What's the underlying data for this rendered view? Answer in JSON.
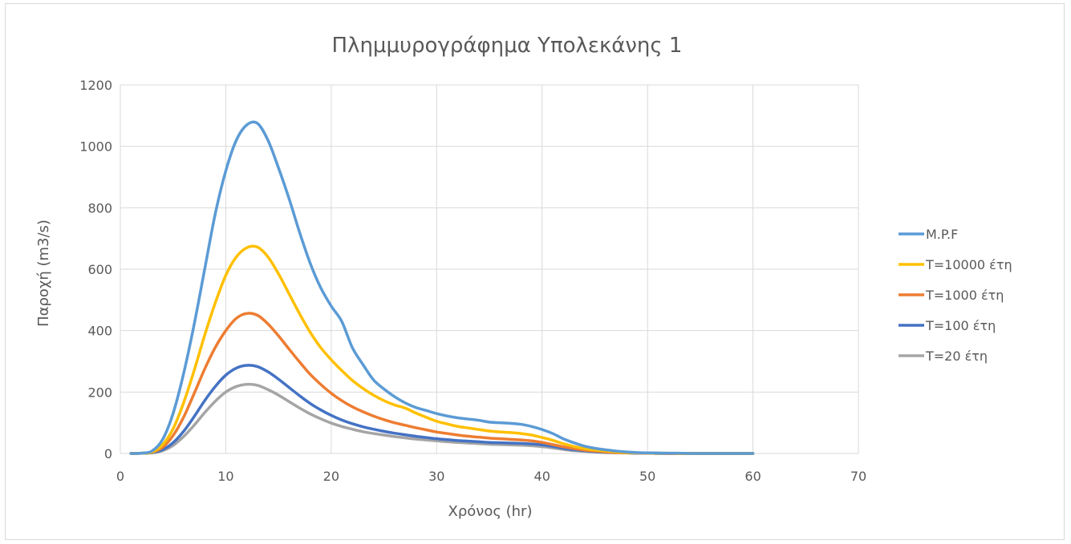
{
  "chart_data": {
    "type": "line",
    "title": "Πλημμυρογράφημα Υπολεκάνης 1",
    "xlabel": "Χρόνος (hr)",
    "ylabel": "Παροχή (m3/s)",
    "xlim": [
      0,
      70
    ],
    "ylim": [
      0,
      1200
    ],
    "xticks": [
      0,
      10,
      20,
      30,
      40,
      50,
      60,
      70
    ],
    "yticks": [
      0,
      200,
      400,
      600,
      800,
      1000,
      1200
    ],
    "grid": true,
    "legend_position": "right",
    "series": [
      {
        "name": "M.P.F",
        "color": "#5b9bd5",
        "x": [
          1,
          2,
          3,
          4,
          5,
          6,
          7,
          8,
          9,
          10,
          11,
          12,
          13,
          14,
          15,
          16,
          17,
          18,
          19,
          20,
          21,
          22,
          23,
          24,
          25,
          26,
          27,
          28,
          29,
          30,
          31,
          32,
          33,
          34,
          35,
          36,
          37,
          38,
          39,
          40,
          41,
          42,
          43,
          44,
          45,
          46,
          47,
          48,
          49,
          50,
          51,
          52,
          53,
          54,
          55,
          56,
          57,
          58,
          59,
          60
        ],
        "y": [
          0,
          1,
          8,
          45,
          130,
          260,
          420,
          600,
          780,
          920,
          1020,
          1070,
          1075,
          1020,
          930,
          830,
          720,
          620,
          540,
          480,
          430,
          345,
          290,
          240,
          210,
          185,
          165,
          150,
          140,
          130,
          122,
          116,
          112,
          108,
          102,
          100,
          98,
          95,
          88,
          78,
          65,
          48,
          35,
          24,
          17,
          12,
          8,
          5,
          3,
          2,
          1.5,
          1,
          1,
          0,
          0,
          0,
          0,
          0,
          0,
          0
        ]
      },
      {
        "name": "T=10000 έτη",
        "color": "#ffc000",
        "x": [
          1,
          2,
          3,
          4,
          5,
          6,
          7,
          8,
          9,
          10,
          11,
          12,
          13,
          14,
          15,
          16,
          17,
          18,
          19,
          20,
          21,
          22,
          23,
          24,
          25,
          26,
          27,
          28,
          29,
          30,
          31,
          32,
          33,
          34,
          35,
          36,
          37,
          38,
          39,
          40,
          41,
          42,
          43,
          44,
          45,
          46,
          47,
          48,
          49,
          50,
          51,
          52,
          53,
          54,
          55,
          56,
          57,
          58,
          59,
          60
        ],
        "y": [
          0,
          1,
          5,
          28,
          80,
          165,
          270,
          385,
          490,
          580,
          640,
          670,
          672,
          640,
          585,
          520,
          455,
          395,
          345,
          305,
          270,
          238,
          212,
          190,
          172,
          158,
          148,
          132,
          118,
          105,
          96,
          88,
          83,
          78,
          73,
          70,
          68,
          65,
          60,
          52,
          43,
          32,
          23,
          16,
          11,
          8,
          5,
          3,
          2,
          1.5,
          1,
          1,
          0,
          0,
          0,
          0,
          0,
          0,
          0,
          0
        ]
      },
      {
        "name": "T=1000 έτη",
        "color": "#ed7d31",
        "x": [
          1,
          2,
          3,
          4,
          5,
          6,
          7,
          8,
          9,
          10,
          11,
          12,
          13,
          14,
          15,
          16,
          17,
          18,
          19,
          20,
          21,
          22,
          23,
          24,
          25,
          26,
          27,
          28,
          29,
          30,
          31,
          32,
          33,
          34,
          35,
          36,
          37,
          38,
          39,
          40,
          41,
          42,
          43,
          44,
          45,
          46,
          47,
          48,
          49,
          50,
          51,
          52,
          53,
          54,
          55,
          56,
          57,
          58,
          59,
          60
        ],
        "y": [
          0,
          1,
          4,
          20,
          58,
          118,
          195,
          275,
          345,
          400,
          440,
          456,
          450,
          422,
          383,
          340,
          298,
          258,
          225,
          196,
          172,
          152,
          136,
          122,
          110,
          100,
          92,
          84,
          77,
          70,
          65,
          60,
          56,
          53,
          50,
          48,
          46,
          44,
          41,
          36,
          29,
          22,
          16,
          11,
          8,
          5,
          3,
          2,
          1.5,
          1,
          1,
          0,
          0,
          0,
          0,
          0,
          0,
          0,
          0,
          0
        ]
      },
      {
        "name": "T=100 έτη",
        "color": "#4472c4",
        "x": [
          1,
          2,
          3,
          4,
          5,
          6,
          7,
          8,
          9,
          10,
          11,
          12,
          13,
          14,
          15,
          16,
          17,
          18,
          19,
          20,
          21,
          22,
          23,
          24,
          25,
          26,
          27,
          28,
          29,
          30,
          31,
          32,
          33,
          34,
          35,
          36,
          37,
          38,
          39,
          40,
          41,
          42,
          43,
          44,
          45,
          46,
          47,
          48,
          49,
          50,
          51,
          52,
          53,
          54,
          55,
          56,
          57,
          58,
          59,
          60
        ],
        "y": [
          0,
          0.5,
          3,
          12,
          35,
          72,
          120,
          172,
          218,
          255,
          278,
          287,
          283,
          266,
          242,
          215,
          188,
          163,
          142,
          124,
          109,
          97,
          87,
          79,
          72,
          66,
          61,
          56,
          52,
          48,
          45,
          42,
          40,
          38,
          36,
          35,
          34,
          33,
          31,
          28,
          23,
          17,
          12,
          9,
          6,
          4,
          3,
          2,
          1,
          1,
          0,
          0,
          0,
          0,
          0,
          0,
          0,
          0,
          0,
          0
        ]
      },
      {
        "name": "T=20 έτη",
        "color": "#a5a5a5",
        "x": [
          1,
          2,
          3,
          4,
          5,
          6,
          7,
          8,
          9,
          10,
          11,
          12,
          13,
          14,
          15,
          16,
          17,
          18,
          19,
          20,
          21,
          22,
          23,
          24,
          25,
          26,
          27,
          28,
          29,
          30,
          31,
          32,
          33,
          34,
          35,
          36,
          37,
          38,
          39,
          40,
          41,
          42,
          43,
          44,
          45,
          46,
          47,
          48,
          49,
          50,
          51,
          52,
          53,
          54,
          55,
          56,
          57,
          58,
          59,
          60
        ],
        "y": [
          0,
          0.5,
          2,
          9,
          26,
          55,
          92,
          133,
          170,
          200,
          218,
          225,
          222,
          208,
          190,
          169,
          148,
          129,
          113,
          99,
          88,
          79,
          71,
          65,
          60,
          55,
          51,
          47,
          44,
          41,
          38,
          36,
          34,
          32,
          30,
          29,
          28,
          27,
          25,
          22,
          18,
          13,
          9,
          7,
          5,
          3,
          2,
          1.5,
          1,
          1,
          0,
          0,
          0,
          0,
          0,
          0,
          0,
          0,
          0,
          0
        ]
      }
    ]
  }
}
